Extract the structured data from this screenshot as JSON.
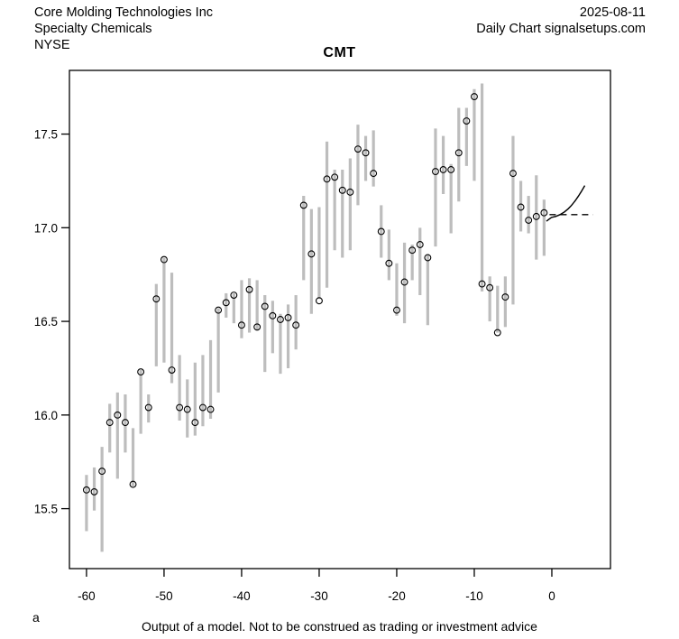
{
  "header": {
    "company": "Core Molding Technologies Inc",
    "industry": "Specialty Chemicals",
    "exchange": "NYSE",
    "date": "2025-08-11",
    "chart_type": "Daily Chart signalsetups.com"
  },
  "title": "CMT",
  "footer": {
    "corner_label": "a",
    "note": "Output of a model. Not to be construed as trading or investment advice"
  },
  "chart_data": {
    "type": "bar",
    "subtype": "high-low-close-range-bars",
    "title": "CMT",
    "xlabel": "",
    "ylabel": "",
    "grid": false,
    "legend": "none",
    "xlim": [
      -62.2,
      7.56
    ],
    "ylim": [
      15.18,
      17.84
    ],
    "x_ticks": [
      -60,
      -50,
      -40,
      -30,
      -20,
      -10,
      0
    ],
    "y_ticks": [
      15.5,
      16.0,
      16.5,
      17.0,
      17.5
    ],
    "x": [
      -60,
      -59,
      -58,
      -57,
      -56,
      -55,
      -54,
      -53,
      -52,
      -51,
      -50,
      -49,
      -48,
      -47,
      -46,
      -45,
      -44,
      -43,
      -42,
      -41,
      -40,
      -39,
      -38,
      -37,
      -36,
      -35,
      -34,
      -33,
      -32,
      -31,
      -30,
      -29,
      -28,
      -27,
      -26,
      -25,
      -24,
      -23,
      -22,
      -21,
      -20,
      -19,
      -18,
      -17,
      -16,
      -15,
      -14,
      -13,
      -12,
      -11,
      -10,
      -9,
      -8,
      -7,
      -6,
      -5,
      -4,
      -3,
      -2,
      -1
    ],
    "high": [
      15.68,
      15.72,
      15.83,
      16.06,
      16.12,
      16.11,
      15.93,
      16.24,
      16.11,
      16.7,
      16.84,
      16.76,
      16.32,
      16.19,
      16.28,
      16.32,
      16.4,
      16.57,
      16.65,
      16.65,
      16.72,
      16.73,
      16.72,
      16.64,
      16.61,
      16.54,
      16.59,
      16.64,
      17.17,
      17.1,
      17.11,
      17.46,
      17.31,
      17.31,
      17.37,
      17.55,
      17.49,
      17.52,
      17.12,
      16.99,
      16.81,
      16.92,
      16.91,
      17.0,
      16.86,
      17.53,
      17.49,
      17.34,
      17.64,
      17.64,
      17.74,
      17.77,
      16.74,
      16.69,
      16.74,
      17.49,
      17.25,
      17.17,
      17.28,
      17.15
    ],
    "low": [
      15.38,
      15.49,
      15.27,
      15.8,
      15.66,
      15.8,
      15.62,
      15.9,
      15.96,
      16.26,
      16.28,
      16.17,
      15.97,
      15.88,
      15.89,
      15.94,
      15.98,
      16.12,
      16.52,
      16.49,
      16.41,
      16.44,
      16.45,
      16.23,
      16.33,
      16.22,
      16.25,
      16.35,
      16.72,
      16.54,
      16.62,
      16.68,
      16.88,
      16.84,
      16.88,
      17.12,
      17.25,
      17.22,
      16.84,
      16.72,
      16.53,
      16.49,
      16.72,
      16.64,
      16.48,
      16.9,
      17.18,
      16.97,
      17.14,
      17.33,
      17.25,
      16.66,
      16.5,
      16.44,
      16.47,
      16.59,
      16.98,
      16.97,
      16.83,
      16.85
    ],
    "close": [
      15.6,
      15.59,
      15.7,
      15.96,
      16.0,
      15.96,
      15.63,
      16.23,
      16.04,
      16.62,
      16.83,
      16.24,
      16.04,
      16.03,
      15.96,
      16.04,
      16.03,
      16.56,
      16.6,
      16.64,
      16.48,
      16.67,
      16.47,
      16.58,
      16.53,
      16.51,
      16.52,
      16.48,
      17.12,
      16.86,
      16.61,
      17.26,
      17.27,
      17.2,
      17.19,
      17.42,
      17.4,
      17.29,
      16.98,
      16.81,
      16.56,
      16.71,
      16.88,
      16.91,
      16.84,
      17.3,
      17.31,
      17.31,
      17.4,
      17.57,
      17.7,
      16.7,
      16.68,
      16.44,
      16.63,
      17.29,
      17.11,
      17.04,
      17.06,
      17.08
    ],
    "projection": {
      "solid_curve_points": [
        [
          -0.7,
          17.035
        ],
        [
          -0.05,
          17.055
        ],
        [
          1.5,
          17.065
        ],
        [
          2.7,
          17.11
        ],
        [
          4.25,
          17.225
        ]
      ],
      "dashed_level": 17.07,
      "dashed_x_start": -0.3,
      "dashed_x_end": 5.3
    },
    "colors": {
      "bar": "#bdbdbd",
      "marker": "#000000",
      "axis": "#000000",
      "projection": "#000000",
      "background": "#ffffff"
    }
  }
}
